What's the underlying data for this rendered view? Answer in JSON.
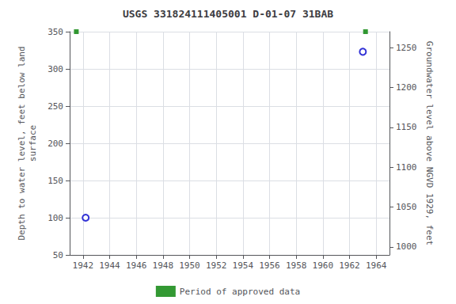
{
  "chart_data": {
    "type": "scatter",
    "title": "USGS 331824111405001 D-01-07 31BAB",
    "ylabel": "Depth to water level, feet below land\nsurface",
    "y2label": "Groundwater level above NGVD 1929, feet",
    "xlim": [
      1941.0,
      1965.0
    ],
    "xticks": [
      1942,
      1944,
      1946,
      1948,
      1950,
      1952,
      1954,
      1956,
      1958,
      1960,
      1962,
      1964
    ],
    "ylim": [
      50,
      350
    ],
    "yticks": [
      50,
      100,
      150,
      200,
      250,
      300,
      350
    ],
    "y2lim": [
      990,
      1270
    ],
    "y2ticks": [
      1000,
      1050,
      1100,
      1150,
      1200,
      1250
    ],
    "grid": true,
    "legend": "bottom",
    "series": [
      {
        "color": "#0000cc",
        "marker": "open_circle",
        "x": [
          1942.2,
          1963.0
        ],
        "values": [
          100,
          323
        ]
      },
      {
        "name": "Period of approved data",
        "color": "#008000",
        "marker": "square",
        "x": [
          1941.5,
          1963.2
        ],
        "values": [
          350,
          350
        ]
      }
    ]
  }
}
